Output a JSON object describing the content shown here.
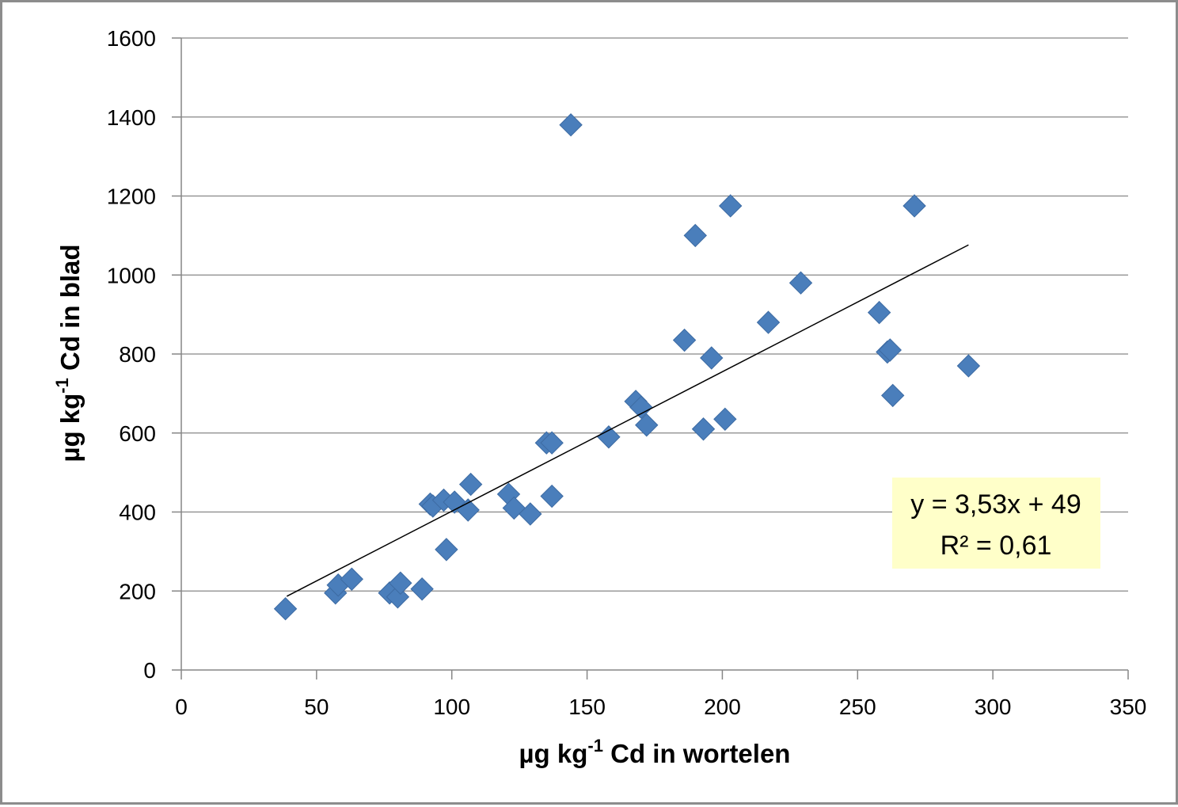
{
  "chart_data": {
    "type": "scatter",
    "title": "",
    "xlabel": {
      "prefix": "µg kg",
      "sup": "-1",
      "suffix": " Cd in wortelen"
    },
    "ylabel": {
      "prefix": "µg kg",
      "sup": "-1",
      "suffix": " Cd in blad"
    },
    "xlim": [
      0,
      350
    ],
    "ylim": [
      0,
      1600
    ],
    "xticks": [
      "0",
      "50",
      "100",
      "150",
      "200",
      "250",
      "300",
      "350"
    ],
    "yticks": [
      "0",
      "200",
      "400",
      "600",
      "800",
      "1000",
      "1200",
      "1400",
      "1600"
    ],
    "grid": "horizontal",
    "legend": "none",
    "marker": "diamond",
    "marker_color": "#4A7EBB",
    "trendline": {
      "slope": 3.53,
      "intercept": 49,
      "x_range": [
        39,
        291
      ],
      "color": "#000000"
    },
    "equation_box": {
      "line1": "y = 3,53x + 49",
      "line2": "R² = 0,61",
      "position": "bottom-right",
      "background": "#FFFFC9"
    },
    "points": [
      {
        "x": 38.5,
        "y": 155
      },
      {
        "x": 57,
        "y": 195
      },
      {
        "x": 58,
        "y": 215
      },
      {
        "x": 63,
        "y": 230
      },
      {
        "x": 77,
        "y": 195
      },
      {
        "x": 80,
        "y": 185
      },
      {
        "x": 81,
        "y": 220
      },
      {
        "x": 89,
        "y": 205
      },
      {
        "x": 92,
        "y": 420
      },
      {
        "x": 93,
        "y": 415
      },
      {
        "x": 97,
        "y": 430
      },
      {
        "x": 98,
        "y": 305
      },
      {
        "x": 101,
        "y": 425
      },
      {
        "x": 106,
        "y": 405
      },
      {
        "x": 107,
        "y": 470
      },
      {
        "x": 121,
        "y": 445
      },
      {
        "x": 123,
        "y": 410
      },
      {
        "x": 129,
        "y": 395
      },
      {
        "x": 135,
        "y": 575
      },
      {
        "x": 137,
        "y": 575
      },
      {
        "x": 137,
        "y": 440
      },
      {
        "x": 144,
        "y": 1380
      },
      {
        "x": 158,
        "y": 590
      },
      {
        "x": 168,
        "y": 680
      },
      {
        "x": 170,
        "y": 665
      },
      {
        "x": 172,
        "y": 620
      },
      {
        "x": 186,
        "y": 835
      },
      {
        "x": 190,
        "y": 1100
      },
      {
        "x": 193,
        "y": 610
      },
      {
        "x": 196,
        "y": 790
      },
      {
        "x": 201,
        "y": 635
      },
      {
        "x": 203,
        "y": 1175
      },
      {
        "x": 217,
        "y": 880
      },
      {
        "x": 229,
        "y": 980
      },
      {
        "x": 258,
        "y": 905
      },
      {
        "x": 261,
        "y": 805
      },
      {
        "x": 262,
        "y": 810
      },
      {
        "x": 263,
        "y": 695
      },
      {
        "x": 271,
        "y": 1175
      },
      {
        "x": 291,
        "y": 770
      }
    ]
  }
}
